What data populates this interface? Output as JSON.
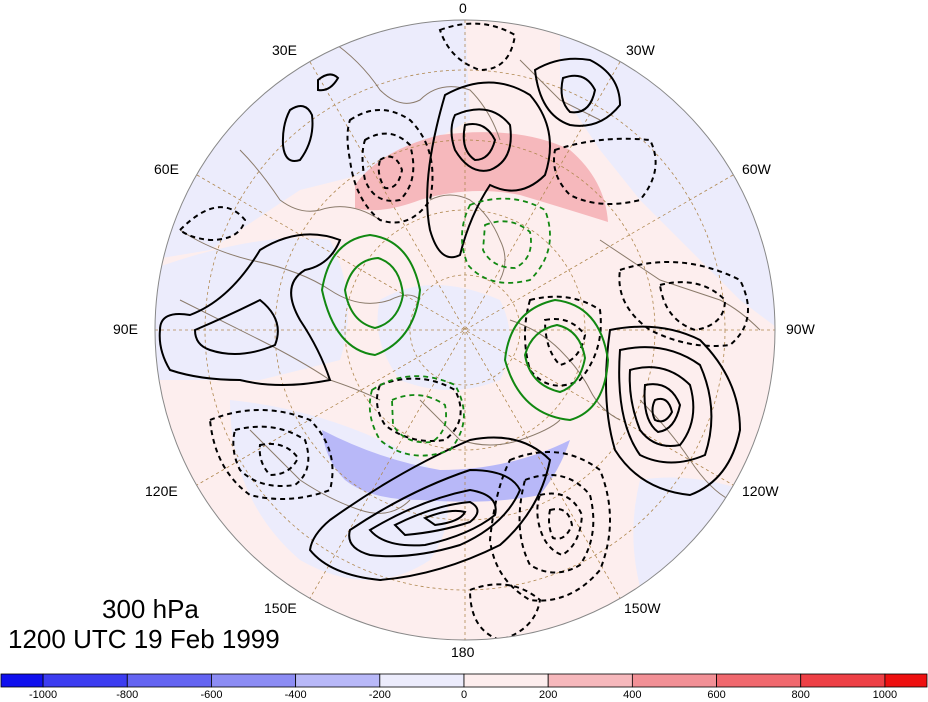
{
  "title": {
    "level": "300 hPa",
    "datetime": "1200 UTC 19 Feb 1999"
  },
  "longitude_labels": [
    {
      "key": "lon-0",
      "text": "0"
    },
    {
      "key": "lon-30w",
      "text": "30W"
    },
    {
      "key": "lon-60w",
      "text": "60W"
    },
    {
      "key": "lon-90w",
      "text": "90W"
    },
    {
      "key": "lon-120w",
      "text": "120W"
    },
    {
      "key": "lon-150w",
      "text": "150W"
    },
    {
      "key": "lon-180",
      "text": "180"
    },
    {
      "key": "lon-150e",
      "text": "150E"
    },
    {
      "key": "lon-120e",
      "text": "120E"
    },
    {
      "key": "lon-90e",
      "text": "90E"
    },
    {
      "key": "lon-60e",
      "text": "60E"
    },
    {
      "key": "lon-30e",
      "text": "30E"
    }
  ],
  "colorbar": {
    "min": -1100,
    "max": 1100,
    "bins": [
      {
        "from": -1100,
        "to": -1000,
        "color": "#1010ee"
      },
      {
        "from": -1000,
        "to": -800,
        "color": "#3c3cf0"
      },
      {
        "from": -800,
        "to": -600,
        "color": "#6464f2"
      },
      {
        "from": -600,
        "to": -400,
        "color": "#8c8cf4"
      },
      {
        "from": -400,
        "to": -200,
        "color": "#b8b8f8"
      },
      {
        "from": -200,
        "to": 0,
        "color": "#ececfc"
      },
      {
        "from": 0,
        "to": 200,
        "color": "#fdeeee"
      },
      {
        "from": 200,
        "to": 400,
        "color": "#f6b8bc"
      },
      {
        "from": 400,
        "to": 600,
        "color": "#f29096"
      },
      {
        "from": 600,
        "to": 800,
        "color": "#f0686e"
      },
      {
        "from": 800,
        "to": 1000,
        "color": "#ee4046"
      },
      {
        "from": 1000,
        "to": 1100,
        "color": "#ee1010"
      }
    ],
    "tick_labels": [
      "-1000",
      "-800",
      "-600",
      "-400",
      "-200",
      "0",
      "200",
      "400",
      "600",
      "800",
      "1000"
    ]
  },
  "colors": {
    "positive_contour": "#000000",
    "negative_contour": "#000000",
    "green_contour": "#118811",
    "coastline": "#8b7b6b",
    "graticule": "#b08850"
  }
}
